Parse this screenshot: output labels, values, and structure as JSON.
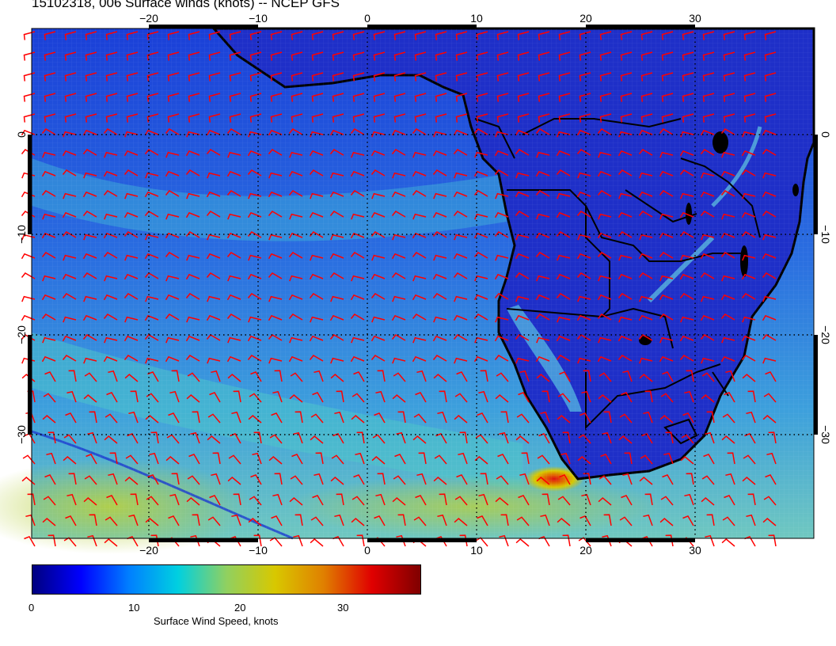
{
  "title": "15102318, 006 Surface winds (knots) -- NCEP GFS",
  "map": {
    "x_ticks": [
      "−20",
      "−10",
      "0",
      "10",
      "20",
      "30"
    ],
    "y_ticks": [
      "0",
      "−10",
      "−20",
      "−30"
    ],
    "barb_color": "#ff0000",
    "coast_color": "#000000"
  },
  "colorbar": {
    "ticks": [
      "0",
      "10",
      "20",
      "30"
    ],
    "label": "Surface Wind Speed, knots",
    "colors": [
      "#00007f",
      "#0000ff",
      "#0080ff",
      "#00d0e0",
      "#90d060",
      "#d8c800",
      "#e08000",
      "#e00000",
      "#7f0000"
    ]
  }
}
